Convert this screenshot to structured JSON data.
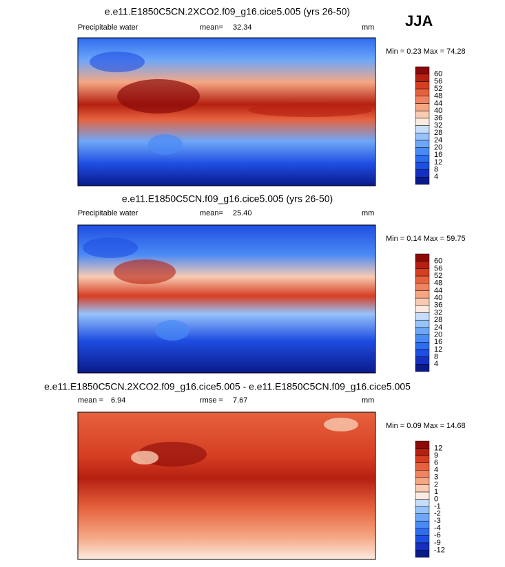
{
  "season": "JJA",
  "panels": [
    {
      "title": "e.e11.E1850C5CN.2XCO2.f09_g16.cice5.005 (yrs 26-50)",
      "variable": "Precipitable water",
      "stat1_label": "mean=",
      "stat1": "32.34",
      "units": "mm",
      "min_label": "Min =",
      "min": "0.23",
      "max_label": "Max =",
      "max": "74.28",
      "levels": [
        4,
        8,
        12,
        16,
        20,
        24,
        28,
        32,
        36,
        40,
        44,
        48,
        52,
        56,
        60
      ],
      "colors": [
        "#0a1a8a",
        "#1530c0",
        "#1f4ee2",
        "#2e6cf0",
        "#4a8af5",
        "#6ea7f8",
        "#97c3fa",
        "#c6defc",
        "#fcebe0",
        "#f8cbb2",
        "#f5a784",
        "#f08462",
        "#e6623e",
        "#d63e22",
        "#b52010",
        "#8a0a0a"
      ]
    },
    {
      "title": "e.e11.E1850C5CN.f09_g16.cice5.005 (yrs 26-50)",
      "variable": "Precipitable water",
      "stat1_label": "mean=",
      "stat1": "25.40",
      "units": "mm",
      "min_label": "Min =",
      "min": "0.14",
      "max_label": "Max =",
      "max": "59.75",
      "levels": [
        4,
        8,
        12,
        16,
        20,
        24,
        28,
        32,
        36,
        40,
        44,
        48,
        52,
        56,
        60
      ],
      "colors": [
        "#0a1a8a",
        "#1530c0",
        "#1f4ee2",
        "#2e6cf0",
        "#4a8af5",
        "#6ea7f8",
        "#97c3fa",
        "#c6defc",
        "#fcebe0",
        "#f8cbb2",
        "#f5a784",
        "#f08462",
        "#e6623e",
        "#d63e22",
        "#b52010",
        "#8a0a0a"
      ]
    },
    {
      "title": "e.e11.E1850C5CN.2XCO2.f09_g16.cice5.005 - e.e11.E1850C5CN.f09_g16.cice5.005",
      "stat1_label": "mean =",
      "stat1": "6.94",
      "stat2_label": "rmse =",
      "stat2": "7.67",
      "units": "mm",
      "min_label": "Min =",
      "min": "0.09",
      "max_label": "Max =",
      "max": "14.68",
      "levels": [
        -12,
        -9,
        -6,
        -4,
        -3,
        -2,
        -1,
        0,
        1,
        2,
        3,
        4,
        6,
        9,
        12
      ],
      "colors": [
        "#0a1a8a",
        "#1530c0",
        "#1f4ee2",
        "#2e6cf0",
        "#4a8af5",
        "#6ea7f8",
        "#97c3fa",
        "#c6defc",
        "#fcebe0",
        "#f8cbb2",
        "#f5a784",
        "#f08462",
        "#e6623e",
        "#d63e22",
        "#b52010",
        "#8a0a0a"
      ]
    }
  ]
}
